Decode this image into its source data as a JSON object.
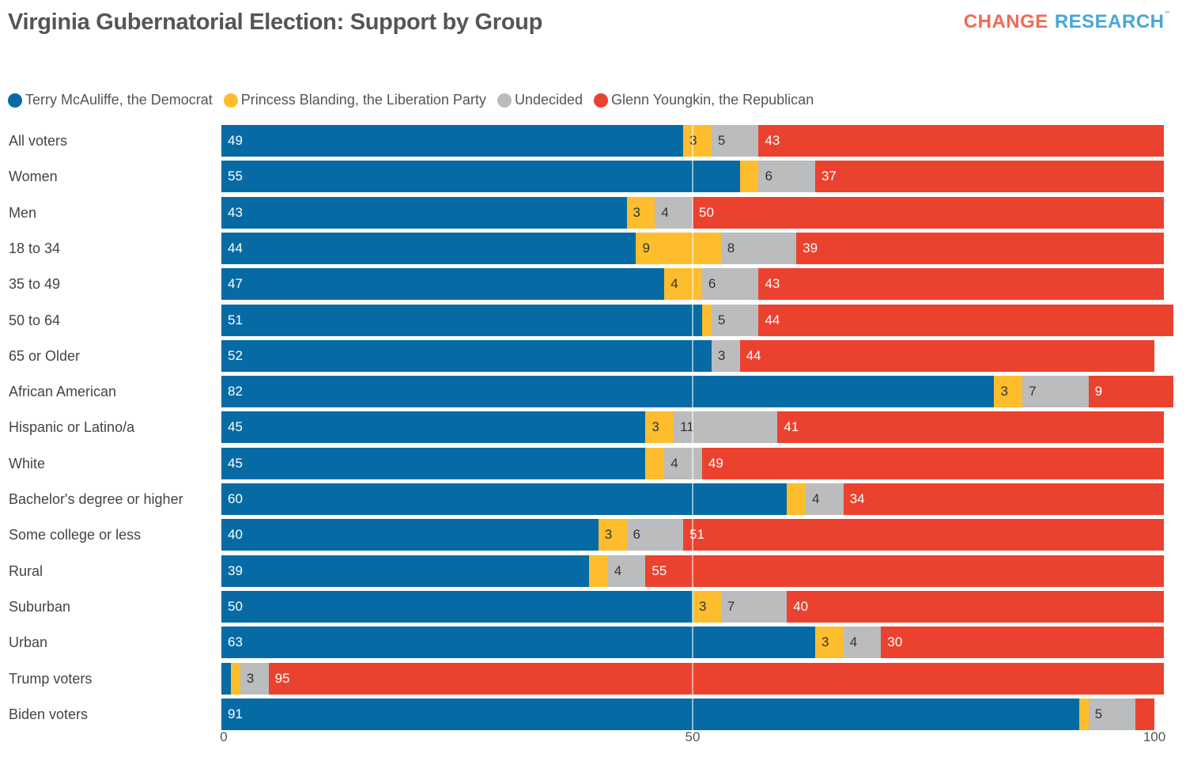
{
  "header": {
    "title": "Virginia Gubernatorial Election: Support by Group",
    "logo_part1": "CHANGE",
    "logo_part2": "RESEARCH",
    "logo_tm": "™"
  },
  "colors": {
    "democrat": "#066ba4",
    "liberation": "#fdbd2c",
    "undecided": "#babcbe",
    "republican": "#eb422f"
  },
  "chart_data": {
    "type": "bar",
    "orientation": "horizontal",
    "stacked": true,
    "title": "Virginia Gubernatorial Election: Support by Group",
    "xlabel": "",
    "ylabel": "",
    "xlim": [
      0,
      100
    ],
    "x_ticks": [
      "0",
      "50",
      "100"
    ],
    "gridlines": [
      50
    ],
    "legend_position": "top-left",
    "categories": [
      "All voters",
      "Women",
      "Men",
      "18 to 34",
      "35 to 49",
      "50 to 64",
      "65 or Older",
      "African American",
      "Hispanic or Latino/a",
      "White",
      "Bachelor's degree or higher",
      "Some college or less",
      "Rural",
      "Suburban",
      "Urban",
      "Trump voters",
      "Biden voters"
    ],
    "series": [
      {
        "name": "Terry McAuliffe, the Democrat",
        "key": "democrat",
        "values": [
          49,
          55,
          43,
          44,
          47,
          51,
          52,
          82,
          45,
          45,
          60,
          40,
          39,
          50,
          63,
          1,
          91
        ],
        "labels": [
          "49",
          "55",
          "43",
          "44",
          "47",
          "51",
          "52",
          "82",
          "45",
          "45",
          "60",
          "40",
          "39",
          "50",
          "63",
          "",
          "91"
        ]
      },
      {
        "name": "Princess Blanding, the Liberation Party",
        "key": "liberation",
        "values": [
          3,
          2,
          3,
          9,
          4,
          1,
          0,
          3,
          3,
          2,
          2,
          3,
          2,
          3,
          3,
          1,
          1
        ],
        "labels": [
          "3",
          "",
          "3",
          "9",
          "4",
          "",
          "",
          "3",
          "3",
          "",
          "",
          "3",
          "",
          "3",
          "3",
          "",
          ""
        ]
      },
      {
        "name": "Undecided",
        "key": "undecided",
        "values": [
          5,
          6,
          4,
          8,
          6,
          5,
          3,
          7,
          11,
          4,
          4,
          6,
          4,
          7,
          4,
          3,
          5
        ],
        "labels": [
          "5",
          "6",
          "4",
          "8",
          "6",
          "5",
          "3",
          "7",
          "11",
          "4",
          "4",
          "6",
          "4",
          "7",
          "4",
          "3",
          "5"
        ]
      },
      {
        "name": "Glenn Youngkin, the Republican",
        "key": "republican",
        "values": [
          43,
          37,
          50,
          39,
          43,
          44,
          44,
          9,
          41,
          49,
          34,
          51,
          55,
          40,
          30,
          95,
          2
        ],
        "labels": [
          "43",
          "37",
          "50",
          "39",
          "43",
          "44",
          "44",
          "9",
          "41",
          "49",
          "34",
          "51",
          "55",
          "40",
          "30",
          "95",
          ""
        ]
      }
    ]
  }
}
